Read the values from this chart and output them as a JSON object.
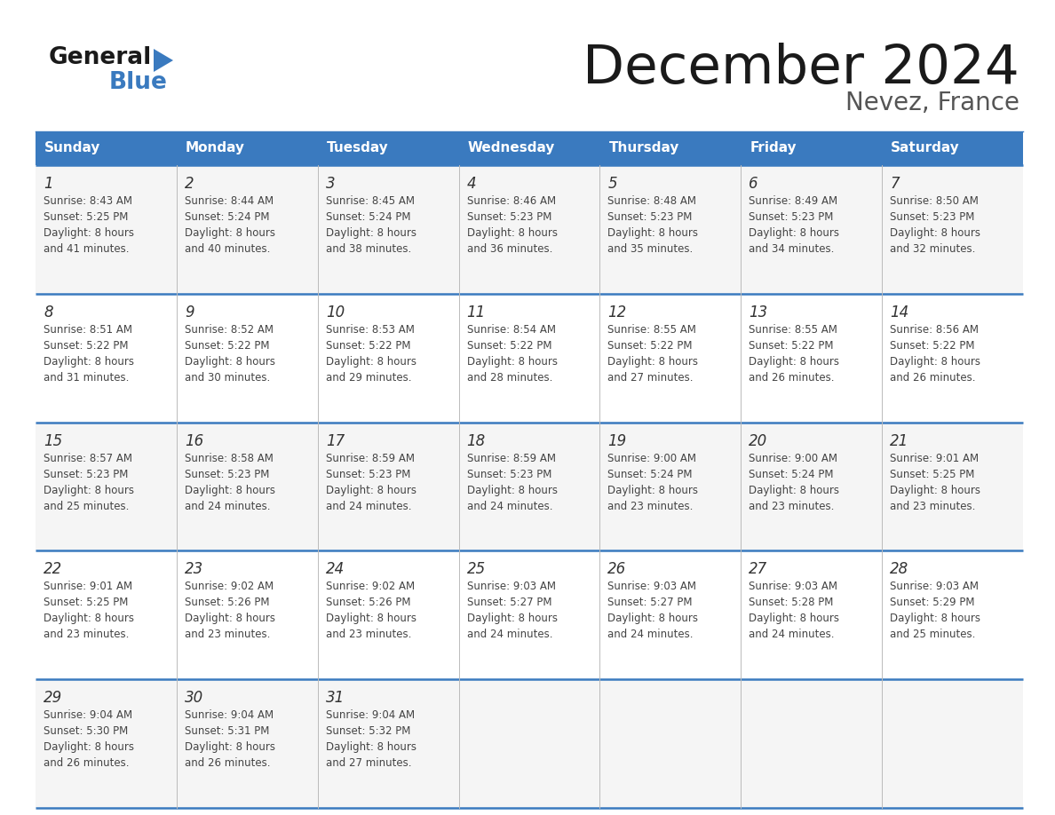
{
  "title": "December 2024",
  "subtitle": "Nevez, France",
  "header_bg": "#3a7abf",
  "header_text": "#ffffff",
  "border_color": "#3a7abf",
  "text_color": "#444444",
  "day_num_color": "#333333",
  "line_color": "#3a7abf",
  "row_bg_light": "#f5f5f5",
  "row_bg_white": "#ffffff",
  "days_of_week": [
    "Sunday",
    "Monday",
    "Tuesday",
    "Wednesday",
    "Thursday",
    "Friday",
    "Saturday"
  ],
  "weeks": [
    [
      {
        "day": 1,
        "sunrise": "8:43 AM",
        "sunset": "5:25 PM",
        "daylight_min": "41"
      },
      {
        "day": 2,
        "sunrise": "8:44 AM",
        "sunset": "5:24 PM",
        "daylight_min": "40"
      },
      {
        "day": 3,
        "sunrise": "8:45 AM",
        "sunset": "5:24 PM",
        "daylight_min": "38"
      },
      {
        "day": 4,
        "sunrise": "8:46 AM",
        "sunset": "5:23 PM",
        "daylight_min": "36"
      },
      {
        "day": 5,
        "sunrise": "8:48 AM",
        "sunset": "5:23 PM",
        "daylight_min": "35"
      },
      {
        "day": 6,
        "sunrise": "8:49 AM",
        "sunset": "5:23 PM",
        "daylight_min": "34"
      },
      {
        "day": 7,
        "sunrise": "8:50 AM",
        "sunset": "5:23 PM",
        "daylight_min": "32"
      }
    ],
    [
      {
        "day": 8,
        "sunrise": "8:51 AM",
        "sunset": "5:22 PM",
        "daylight_min": "31"
      },
      {
        "day": 9,
        "sunrise": "8:52 AM",
        "sunset": "5:22 PM",
        "daylight_min": "30"
      },
      {
        "day": 10,
        "sunrise": "8:53 AM",
        "sunset": "5:22 PM",
        "daylight_min": "29"
      },
      {
        "day": 11,
        "sunrise": "8:54 AM",
        "sunset": "5:22 PM",
        "daylight_min": "28"
      },
      {
        "day": 12,
        "sunrise": "8:55 AM",
        "sunset": "5:22 PM",
        "daylight_min": "27"
      },
      {
        "day": 13,
        "sunrise": "8:55 AM",
        "sunset": "5:22 PM",
        "daylight_min": "26"
      },
      {
        "day": 14,
        "sunrise": "8:56 AM",
        "sunset": "5:22 PM",
        "daylight_min": "26"
      }
    ],
    [
      {
        "day": 15,
        "sunrise": "8:57 AM",
        "sunset": "5:23 PM",
        "daylight_min": "25"
      },
      {
        "day": 16,
        "sunrise": "8:58 AM",
        "sunset": "5:23 PM",
        "daylight_min": "24"
      },
      {
        "day": 17,
        "sunrise": "8:59 AM",
        "sunset": "5:23 PM",
        "daylight_min": "24"
      },
      {
        "day": 18,
        "sunrise": "8:59 AM",
        "sunset": "5:23 PM",
        "daylight_min": "24"
      },
      {
        "day": 19,
        "sunrise": "9:00 AM",
        "sunset": "5:24 PM",
        "daylight_min": "23"
      },
      {
        "day": 20,
        "sunrise": "9:00 AM",
        "sunset": "5:24 PM",
        "daylight_min": "23"
      },
      {
        "day": 21,
        "sunrise": "9:01 AM",
        "sunset": "5:25 PM",
        "daylight_min": "23"
      }
    ],
    [
      {
        "day": 22,
        "sunrise": "9:01 AM",
        "sunset": "5:25 PM",
        "daylight_min": "23"
      },
      {
        "day": 23,
        "sunrise": "9:02 AM",
        "sunset": "5:26 PM",
        "daylight_min": "23"
      },
      {
        "day": 24,
        "sunrise": "9:02 AM",
        "sunset": "5:26 PM",
        "daylight_min": "23"
      },
      {
        "day": 25,
        "sunrise": "9:03 AM",
        "sunset": "5:27 PM",
        "daylight_min": "24"
      },
      {
        "day": 26,
        "sunrise": "9:03 AM",
        "sunset": "5:27 PM",
        "daylight_min": "24"
      },
      {
        "day": 27,
        "sunrise": "9:03 AM",
        "sunset": "5:28 PM",
        "daylight_min": "24"
      },
      {
        "day": 28,
        "sunrise": "9:03 AM",
        "sunset": "5:29 PM",
        "daylight_min": "25"
      }
    ],
    [
      {
        "day": 29,
        "sunrise": "9:04 AM",
        "sunset": "5:30 PM",
        "daylight_min": "26"
      },
      {
        "day": 30,
        "sunrise": "9:04 AM",
        "sunset": "5:31 PM",
        "daylight_min": "26"
      },
      {
        "day": 31,
        "sunrise": "9:04 AM",
        "sunset": "5:32 PM",
        "daylight_min": "27"
      },
      null,
      null,
      null,
      null
    ]
  ]
}
